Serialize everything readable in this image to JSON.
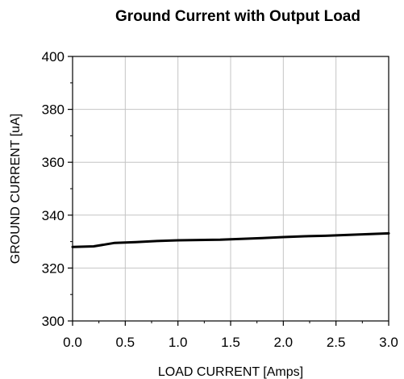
{
  "chart_data": {
    "type": "line",
    "title": "Ground Current with Output Load",
    "xlabel": "LOAD CURRENT [Amps]",
    "ylabel": "GROUND CURRENT [uA]",
    "xlim": [
      0,
      3
    ],
    "ylim": [
      300,
      400
    ],
    "x_ticks": [
      0.0,
      0.5,
      1.0,
      1.5,
      2.0,
      2.5,
      3.0
    ],
    "x_tick_labels": [
      "0.0",
      "0.5",
      "1.0",
      "1.5",
      "2.0",
      "2.5",
      "3.0"
    ],
    "y_ticks": [
      300,
      320,
      340,
      360,
      380,
      400
    ],
    "y_tick_labels": [
      "300",
      "320",
      "340",
      "360",
      "380",
      "400"
    ],
    "grid": true,
    "legend": "none",
    "series": [
      {
        "color": "#000000",
        "x": [
          0.0,
          0.2,
          0.4,
          0.6,
          0.8,
          1.0,
          1.2,
          1.4,
          1.6,
          1.8,
          2.0,
          2.2,
          2.4,
          2.6,
          2.8,
          3.0
        ],
        "y": [
          328.0,
          328.2,
          329.5,
          329.8,
          330.2,
          330.5,
          330.6,
          330.7,
          331.0,
          331.3,
          331.7,
          332.0,
          332.2,
          332.5,
          332.8,
          333.1
        ]
      }
    ]
  }
}
